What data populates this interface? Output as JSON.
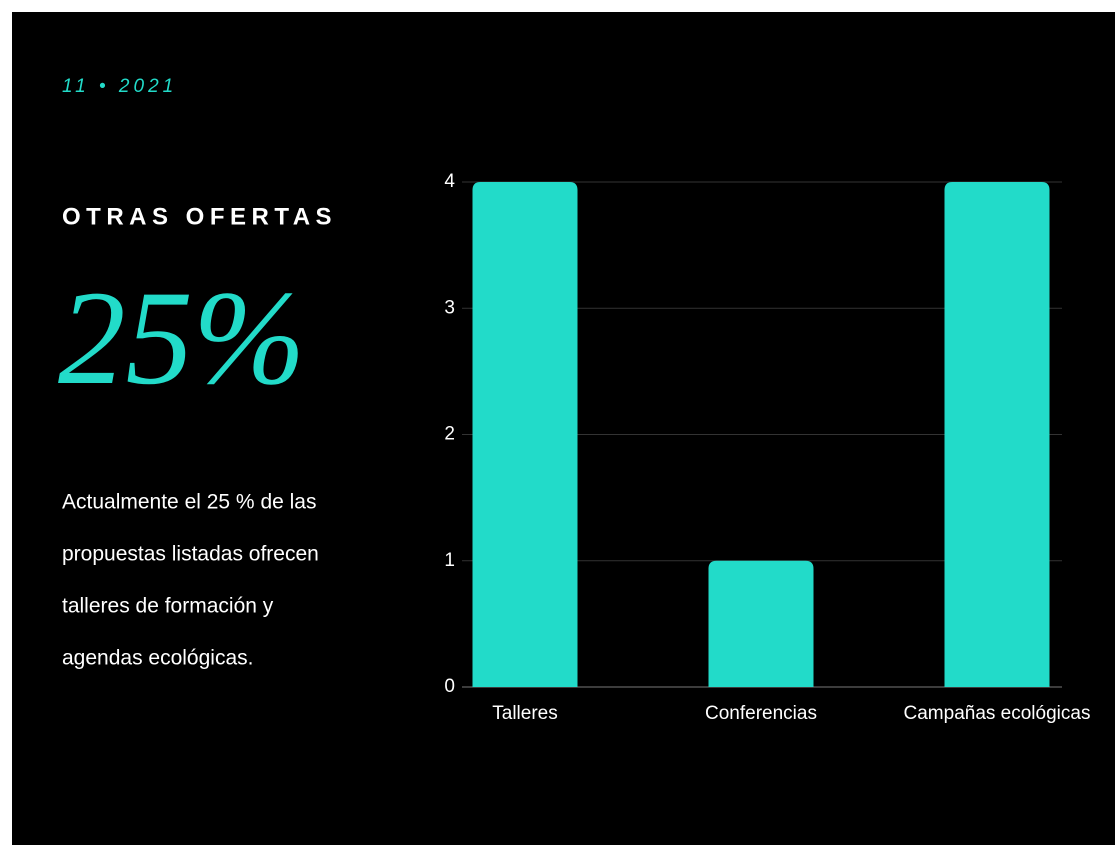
{
  "slide": {
    "date": "11 • 2021",
    "heading": "OTRAS OFERTAS",
    "stat": "25%",
    "body": [
      "Actualmente el 25 % de las",
      "propuestas listadas ofrecen",
      "talleres de formación y",
      "agendas ecológicas."
    ]
  },
  "chart_data": {
    "type": "bar",
    "categories": [
      "Talleres",
      "Conferencias",
      "Campañas ecológicas"
    ],
    "values": [
      4,
      1,
      4
    ],
    "color": "#22dbc9",
    "ylim": [
      0,
      4
    ],
    "yticks": [
      0,
      1,
      2,
      3,
      4
    ],
    "grid": true
  }
}
